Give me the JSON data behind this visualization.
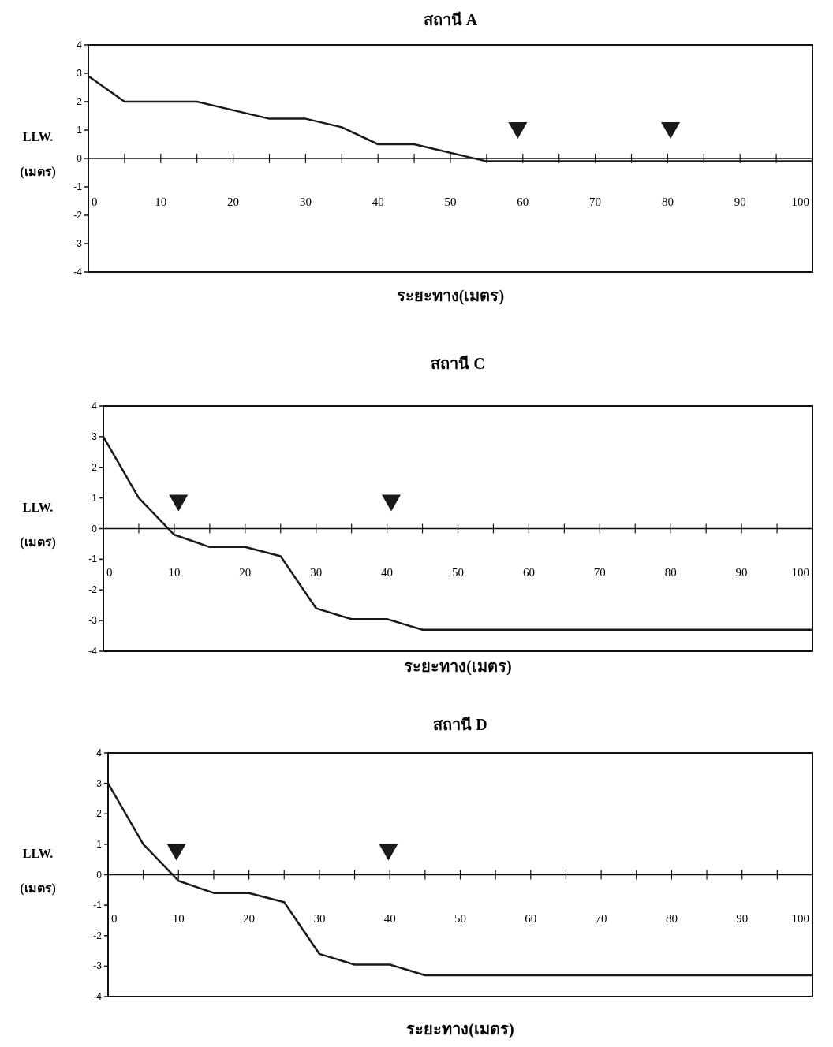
{
  "chart_data": [
    {
      "type": "line",
      "title": "สถานี A",
      "xlabel": "ระยะทาง(เมตร)",
      "ylabel": "LLW. (เมตร)",
      "xlim": [
        0,
        100
      ],
      "ylim": [
        -4,
        4
      ],
      "yticks": [
        -4,
        -3,
        -2,
        -1,
        0,
        1,
        2,
        3,
        4
      ],
      "xticks": [
        {
          "value": 0,
          "label": "0"
        },
        {
          "value": 5,
          "label": null
        },
        10,
        {
          "value": 15,
          "label": null
        },
        20,
        {
          "value": 25,
          "label": null
        },
        30,
        {
          "value": 35,
          "label": null
        },
        40,
        {
          "value": 45,
          "label": null
        },
        50,
        {
          "value": 55,
          "label": null
        },
        60,
        {
          "value": 65,
          "label": null
        },
        70,
        {
          "value": 75,
          "label": null
        },
        80,
        {
          "value": 85,
          "label": null
        },
        90,
        {
          "value": 95,
          "label": null
        },
        100
      ],
      "grid": false,
      "ref_lines": [
        {
          "axis": "y",
          "value": 0,
          "label": null,
          "color": "#111111",
          "line_style": "solid"
        }
      ],
      "series": [
        {
          "type": "line",
          "color": "#1a1a1a",
          "marker": "none",
          "line_style": "solid",
          "x": [
            0,
            5,
            15,
            25,
            30,
            35,
            40,
            45,
            55,
            100
          ],
          "values": [
            2.9,
            2.0,
            2.0,
            1.4,
            1.4,
            1.1,
            0.5,
            0.5,
            -0.1,
            -0.1
          ]
        },
        {
          "type": "scatter",
          "color": "#1a1a1a",
          "marker": "triangle",
          "x": [
            59.3,
            80.4
          ],
          "values": [
            1.0,
            1.0
          ]
        }
      ]
    },
    {
      "type": "line",
      "title": "สถานี C",
      "xlabel": "ระยะทาง(เมตร)",
      "ylabel": "LLW. (เมตร)",
      "xlim": [
        0,
        100
      ],
      "ylim": [
        -4,
        4
      ],
      "yticks": [
        -4,
        -3,
        -2,
        -1,
        0,
        1,
        2,
        3,
        4
      ],
      "xticks": [
        {
          "value": 0,
          "label": "0"
        },
        {
          "value": 5,
          "label": null
        },
        10,
        {
          "value": 15,
          "label": null
        },
        20,
        {
          "value": 25,
          "label": null
        },
        30,
        {
          "value": 35,
          "label": null
        },
        40,
        {
          "value": 45,
          "label": null
        },
        50,
        {
          "value": 55,
          "label": null
        },
        60,
        {
          "value": 65,
          "label": null
        },
        70,
        {
          "value": 75,
          "label": null
        },
        80,
        {
          "value": 85,
          "label": null
        },
        90,
        {
          "value": 95,
          "label": null
        },
        100
      ],
      "grid": false,
      "ref_lines": [
        {
          "axis": "y",
          "value": 0,
          "label": null,
          "color": "#111111",
          "line_style": "solid"
        }
      ],
      "series": [
        {
          "type": "line",
          "color": "#1a1a1a",
          "marker": "none",
          "line_style": "solid",
          "x": [
            0,
            5,
            10,
            15,
            20,
            25,
            30,
            35,
            40,
            45,
            100
          ],
          "values": [
            3.0,
            1.0,
            -0.2,
            -0.6,
            -0.6,
            -0.9,
            -2.6,
            -2.95,
            -2.95,
            -3.3,
            -3.3
          ]
        },
        {
          "type": "scatter",
          "color": "#1a1a1a",
          "marker": "triangle",
          "x": [
            10.6,
            40.6
          ],
          "values": [
            0.85,
            0.85
          ]
        }
      ]
    },
    {
      "type": "line",
      "title": "สถานี D",
      "xlabel": "ระยะทาง(เมตร)",
      "ylabel": "LLW. (เมตร)",
      "xlim": [
        0,
        100
      ],
      "ylim": [
        -4,
        4
      ],
      "yticks": [
        -4,
        -3,
        -2,
        -1,
        0,
        1,
        2,
        3,
        4
      ],
      "xticks": [
        {
          "value": 0,
          "label": "0"
        },
        {
          "value": 5,
          "label": null
        },
        10,
        {
          "value": 15,
          "label": null
        },
        20,
        {
          "value": 25,
          "label": null
        },
        30,
        {
          "value": 35,
          "label": null
        },
        40,
        {
          "value": 45,
          "label": null
        },
        50,
        {
          "value": 55,
          "label": null
        },
        60,
        {
          "value": 65,
          "label": null
        },
        70,
        {
          "value": 75,
          "label": null
        },
        80,
        {
          "value": 85,
          "label": null
        },
        90,
        {
          "value": 95,
          "label": null
        },
        100
      ],
      "grid": false,
      "ref_lines": [
        {
          "axis": "y",
          "value": 0,
          "label": null,
          "color": "#111111",
          "line_style": "solid"
        }
      ],
      "series": [
        {
          "type": "line",
          "color": "#1a1a1a",
          "marker": "none",
          "line_style": "solid",
          "x": [
            0,
            5,
            10,
            15,
            20,
            25,
            30,
            35,
            40,
            45,
            100
          ],
          "values": [
            3.0,
            1.0,
            -0.2,
            -0.6,
            -0.6,
            -0.9,
            -2.6,
            -2.95,
            -2.95,
            -3.3,
            -3.3
          ]
        },
        {
          "type": "scatter",
          "color": "#1a1a1a",
          "marker": "triangle",
          "x": [
            9.7,
            39.8
          ],
          "values": [
            0.75,
            0.75
          ]
        }
      ]
    }
  ]
}
